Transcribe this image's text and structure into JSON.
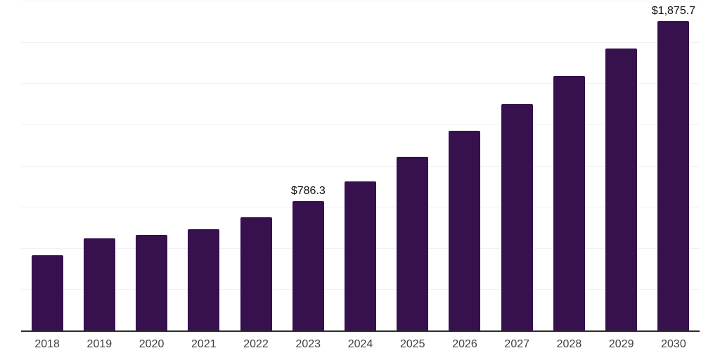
{
  "chart_data": {
    "type": "bar",
    "title": "",
    "xlabel": "",
    "ylabel": "",
    "categories": [
      "2018",
      "2019",
      "2020",
      "2021",
      "2022",
      "2023",
      "2024",
      "2025",
      "2026",
      "2027",
      "2028",
      "2029",
      "2030"
    ],
    "values": [
      455,
      557,
      579,
      613,
      685,
      786.3,
      906,
      1055,
      1213,
      1374,
      1545,
      1711,
      1875.7
    ],
    "point_labels": [
      "",
      "",
      "",
      "",
      "",
      "$786.3",
      "",
      "",
      "",
      "",
      "",
      "",
      "$1,875.7"
    ],
    "ylim": [
      0,
      2000
    ],
    "grid_step": 250,
    "grid": true,
    "legend": false,
    "colors": {
      "bar": "#36114E",
      "axis_line": "#2B2B2B",
      "gridline": "#F1F1F3",
      "value_label": "#0D0D0D",
      "tick_label": "#404040",
      "background": "#FFFFFF"
    }
  }
}
